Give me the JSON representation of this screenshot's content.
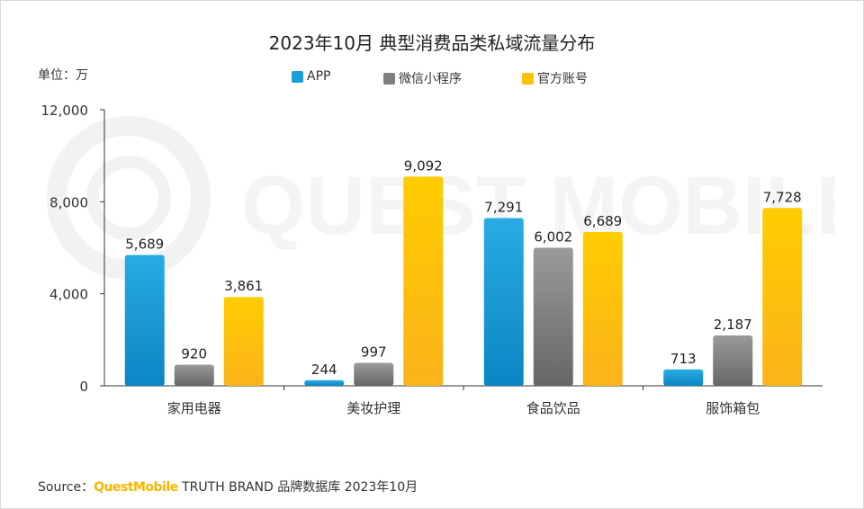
{
  "chart_data": {
    "type": "bar",
    "title": "2023年10月 典型消费品类私域流量分布",
    "unit_label": "单位：万",
    "categories": [
      "家用电器",
      "美妆护理",
      "食品饮品",
      "服饰箱包"
    ],
    "series": [
      {
        "name": "APP",
        "color": "#1a9fdc",
        "values": [
          5689,
          244,
          7291,
          713
        ],
        "labels": [
          "5,689",
          "244",
          "7,291",
          "713"
        ]
      },
      {
        "name": "微信小程序",
        "color": "#7f7f7f",
        "values": [
          920,
          997,
          6002,
          2187
        ],
        "labels": [
          "920",
          "997",
          "6,002",
          "2,187"
        ]
      },
      {
        "name": "官方账号",
        "color": "#ffc000",
        "values": [
          3861,
          9092,
          6689,
          7728
        ],
        "labels": [
          "3,861",
          "9,092",
          "6,689",
          "7,728"
        ]
      }
    ],
    "y_ticks": [
      0,
      4000,
      8000,
      12000
    ],
    "y_tick_labels": [
      "0",
      "4,000",
      "8,000",
      "12,000"
    ],
    "ylim": [
      0,
      12000
    ],
    "xlabel": "",
    "ylabel": "",
    "legend_position": "top-center"
  },
  "source": {
    "prefix": "Source：",
    "brand": "QuestMobile",
    "rest": "TRUTH BRAND 品牌数据库 2023年10月"
  },
  "watermark": {
    "text": "QUEST MOBILE"
  }
}
